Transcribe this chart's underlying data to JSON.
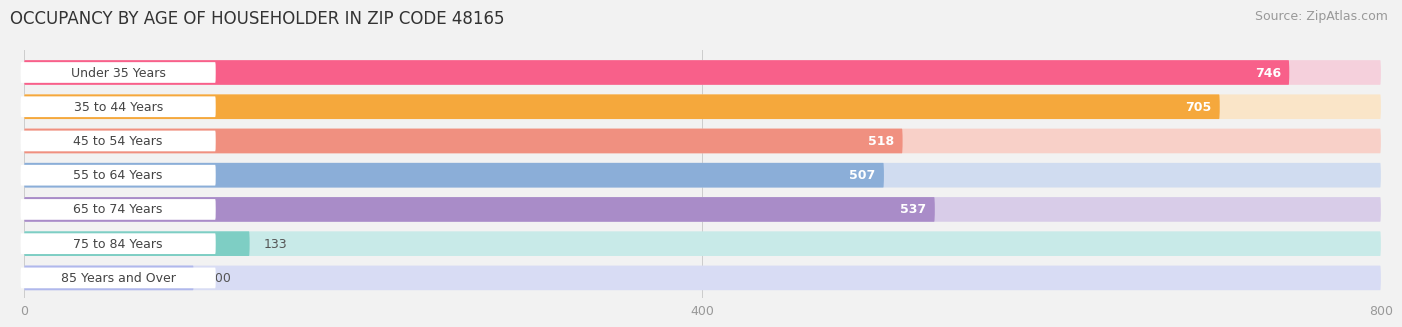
{
  "title": "OCCUPANCY BY AGE OF HOUSEHOLDER IN ZIP CODE 48165",
  "source": "Source: ZipAtlas.com",
  "categories": [
    "Under 35 Years",
    "35 to 44 Years",
    "45 to 54 Years",
    "55 to 64 Years",
    "65 to 74 Years",
    "75 to 84 Years",
    "85 Years and Over"
  ],
  "values": [
    746,
    705,
    518,
    507,
    537,
    133,
    100
  ],
  "bar_colors": [
    "#F8608A",
    "#F5A83C",
    "#F09080",
    "#8BAED8",
    "#A98CC8",
    "#7ECEC4",
    "#B0B8EC"
  ],
  "bar_bg_colors": [
    "#F5D0DC",
    "#FAE5C8",
    "#F8D0C8",
    "#D0DCF0",
    "#D8CCE8",
    "#C8EAE8",
    "#D8DCF4"
  ],
  "label_bg_color": "#FFFFFF",
  "xlim_min": 0,
  "xlim_max": 800,
  "axis_max": 800,
  "xticks": [
    0,
    400,
    800
  ],
  "title_fontsize": 12,
  "source_fontsize": 9,
  "label_fontsize": 9,
  "value_fontsize": 9,
  "background_color": "#F2F2F2"
}
